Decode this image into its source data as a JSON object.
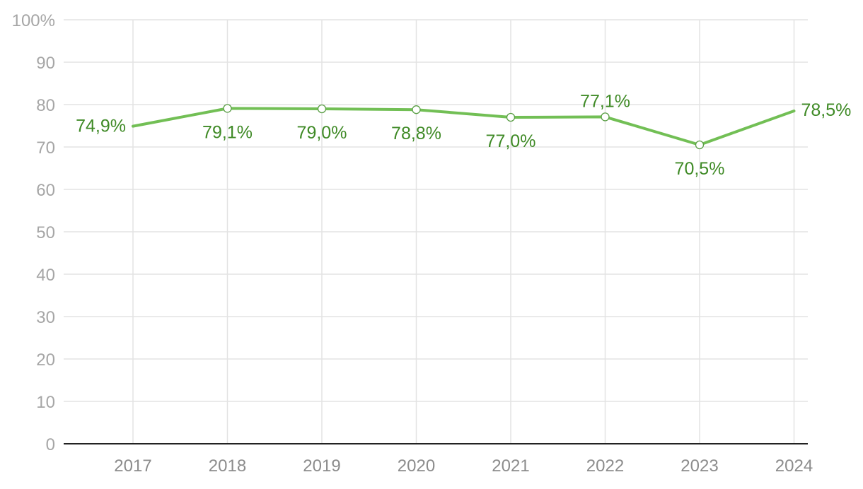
{
  "chart_data": {
    "type": "line",
    "title": "",
    "xlabel": "",
    "ylabel": "",
    "ylim": [
      0,
      100
    ],
    "yticks": [
      0,
      10,
      20,
      30,
      40,
      50,
      60,
      70,
      80,
      90,
      100
    ],
    "ytick_labels": [
      "0",
      "10",
      "20",
      "30",
      "40",
      "50",
      "60",
      "70",
      "80",
      "90",
      "100%"
    ],
    "categories": [
      "2017",
      "2018",
      "2019",
      "2020",
      "2021",
      "2022",
      "2023",
      "2024"
    ],
    "series": [
      {
        "values": [
          74.9,
          79.1,
          79.0,
          78.8,
          77.0,
          77.1,
          70.5,
          78.5
        ],
        "data_labels": [
          "74,9%",
          "79,1%",
          "79,0%",
          "78,8%",
          "77,0%",
          "77,1%",
          "70,5%",
          "78,5%"
        ],
        "color": "#72bf55",
        "marker_color": "#5a9e45",
        "label_color": "#3f8a26"
      }
    ],
    "grid": true,
    "legend": "none"
  }
}
